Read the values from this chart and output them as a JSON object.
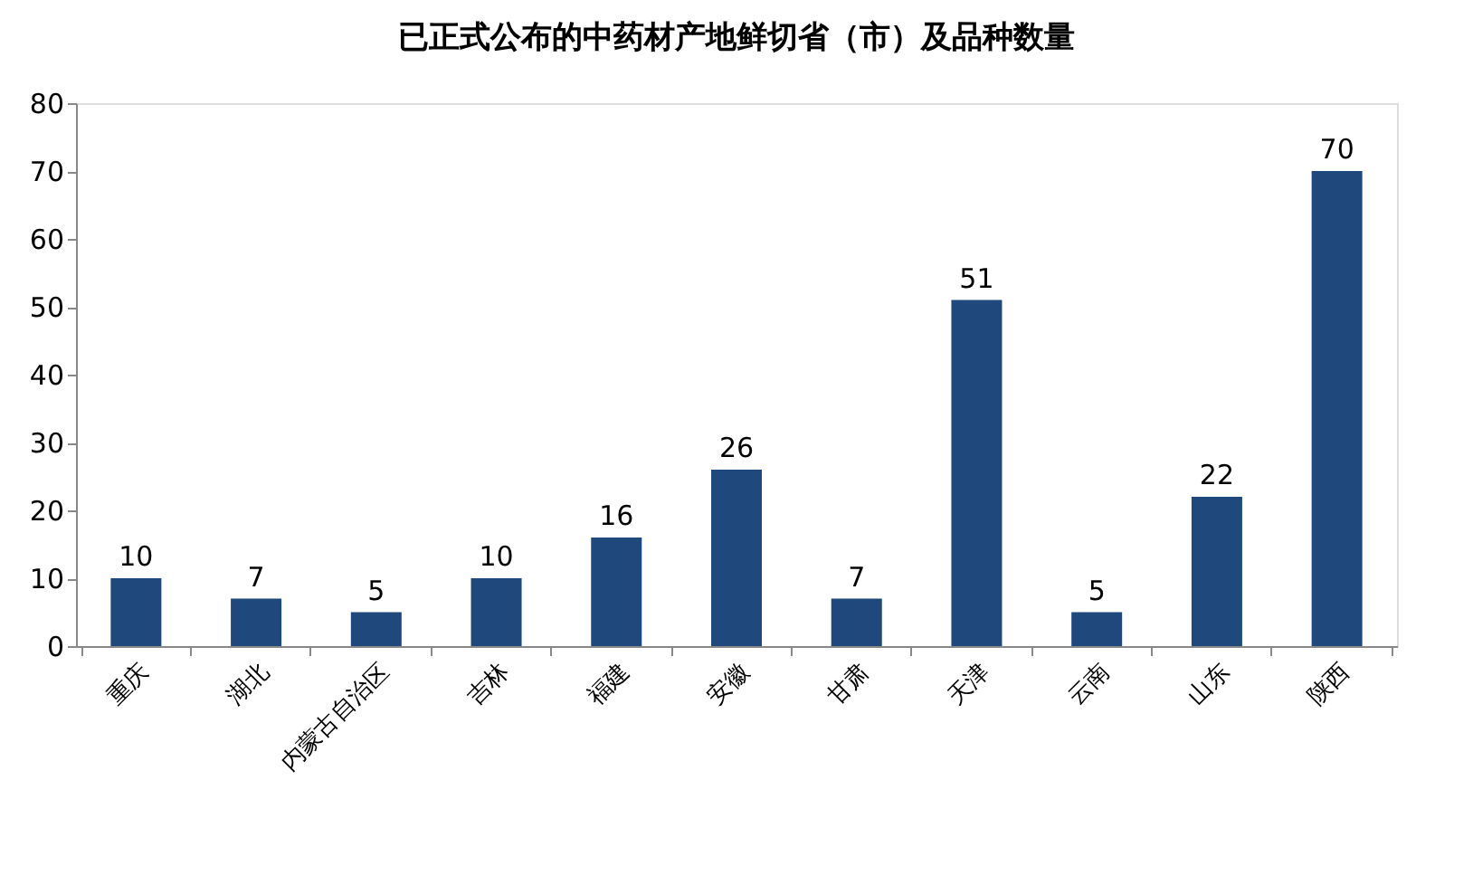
{
  "chart_data": {
    "type": "bar",
    "title": "已正式公布的中药材产地鲜切省（市）及品种数量",
    "categories": [
      "重庆",
      "湖北",
      "内蒙古自治区",
      "吉林",
      "福建",
      "安徽",
      "甘肃",
      "天津",
      "云南",
      "山东",
      "陕西"
    ],
    "values": [
      10,
      7,
      5,
      10,
      16,
      26,
      7,
      51,
      5,
      22,
      70
    ],
    "color": "#1f497d",
    "ylim": [
      0,
      80
    ],
    "yticks": [
      0,
      10,
      20,
      30,
      40,
      50,
      60,
      70,
      80
    ],
    "grid": false,
    "data_labels": true
  }
}
